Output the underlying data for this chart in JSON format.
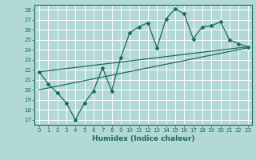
{
  "title": "",
  "xlabel": "Humidex (Indice chaleur)",
  "ylabel": "",
  "bg_color": "#b2d8d8",
  "grid_color": "#ffffff",
  "line_color": "#1a6b5a",
  "xlim": [
    -0.5,
    23.5
  ],
  "ylim": [
    16.5,
    28.5
  ],
  "yticks": [
    17,
    18,
    19,
    20,
    21,
    22,
    23,
    24,
    25,
    26,
    27,
    28
  ],
  "xticks": [
    0,
    1,
    2,
    3,
    4,
    5,
    6,
    7,
    8,
    9,
    10,
    11,
    12,
    13,
    14,
    15,
    16,
    17,
    18,
    19,
    20,
    21,
    22,
    23
  ],
  "line1_x": [
    0,
    1,
    2,
    3,
    4,
    5,
    6,
    7,
    8,
    9,
    10,
    11,
    12,
    13,
    14,
    15,
    16,
    17,
    18,
    19,
    20,
    21,
    22,
    23
  ],
  "line1_y": [
    21.8,
    20.6,
    19.7,
    18.7,
    17.0,
    18.7,
    19.9,
    22.2,
    19.9,
    23.2,
    25.7,
    26.3,
    26.7,
    24.2,
    27.1,
    28.1,
    27.6,
    25.1,
    26.3,
    26.4,
    26.8,
    25.0,
    24.6,
    24.3
  ],
  "line2_x": [
    0,
    23
  ],
  "line2_y": [
    20.0,
    24.2
  ],
  "line3_x": [
    0,
    23
  ],
  "line3_y": [
    21.8,
    24.3
  ]
}
